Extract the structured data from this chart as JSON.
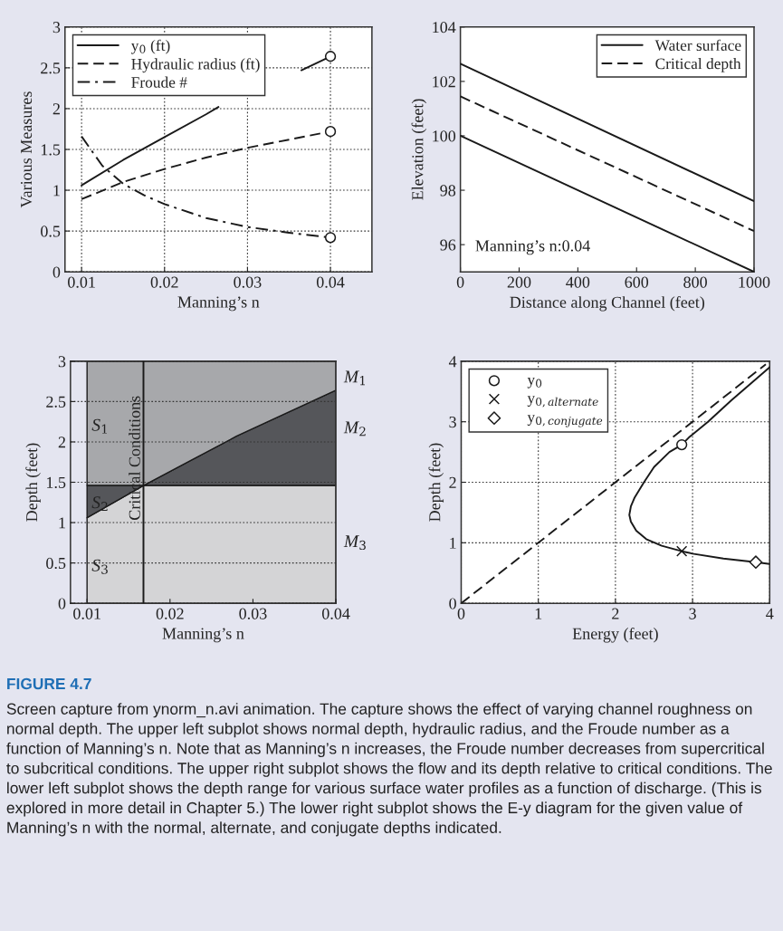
{
  "chart_data": [
    {
      "type": "line",
      "xlabel": "Manning’s n",
      "ylabel": "Various Measures",
      "xlim": [
        0.008,
        0.045
      ],
      "ylim": [
        0,
        3
      ],
      "xticks": [
        0.01,
        0.02,
        0.03,
        0.04
      ],
      "yticks": [
        0,
        0.5,
        1,
        1.5,
        2,
        2.5,
        3
      ],
      "grid": true,
      "legend": "top left",
      "series": [
        {
          "name": "y$_{0}$ (ft)",
          "color": "#1a1a1a",
          "line_style": "solid",
          "x": [
            0.01,
            0.015,
            0.02,
            0.025,
            0.0265,
            0.03,
            0.0365,
            0.04
          ],
          "values": [
            1.06,
            1.37,
            1.65,
            1.93,
            2.02,
            null,
            2.47,
            2.64
          ]
        },
        {
          "name": "Hydraulic radius (ft)",
          "color": "#1a1a1a",
          "line_style": "dashed",
          "x": [
            0.01,
            0.015,
            0.02,
            0.025,
            0.03,
            0.035,
            0.04
          ],
          "values": [
            0.89,
            1.1,
            1.26,
            1.4,
            1.52,
            1.62,
            1.72
          ]
        },
        {
          "name": "Froude #",
          "color": "#1a1a1a",
          "line_style": "dashdot",
          "x": [
            0.01,
            0.0125,
            0.015,
            0.0175,
            0.02,
            0.025,
            0.03,
            0.035,
            0.04
          ],
          "values": [
            1.66,
            1.3,
            1.08,
            0.94,
            0.83,
            0.66,
            0.55,
            0.48,
            0.42
          ]
        },
        {
          "type": "scatter",
          "marker": "circle",
          "color": "#1a1a1a",
          "x": [
            0.04,
            0.04,
            0.04
          ],
          "values": [
            2.64,
            1.72,
            0.42
          ]
        }
      ]
    },
    {
      "type": "line",
      "xlabel": "Distance along Channel (feet)",
      "ylabel": "Elevation (feet)",
      "xlim": [
        0,
        1000
      ],
      "ylim": [
        95,
        104
      ],
      "xticks": [
        0,
        200,
        400,
        600,
        800,
        1000
      ],
      "yticks": [
        96,
        98,
        100,
        102,
        104
      ],
      "legend": "top right",
      "annotations": [
        "Manning’s n:0.04"
      ],
      "series": [
        {
          "name": "Water surface",
          "color": "#1a1a1a",
          "line_style": "solid",
          "x": [
            0,
            1000
          ],
          "values": [
            102.65,
            97.6
          ]
        },
        {
          "name": "Critical depth",
          "color": "#1a1a1a",
          "line_style": "dashed",
          "x": [
            0,
            1000
          ],
          "values": [
            101.45,
            96.5
          ]
        },
        {
          "color": "#1a1a1a",
          "line_style": "solid",
          "x": [
            0,
            1000
          ],
          "values": [
            100,
            95
          ]
        }
      ]
    },
    {
      "type": "area",
      "stacked": true,
      "xlabel": "Manning’s n",
      "ylabel": "Depth (feet)",
      "xlim": [
        0.008,
        0.04
      ],
      "ylim": [
        0,
        3
      ],
      "xticks": [
        0.01,
        0.02,
        0.03,
        0.04
      ],
      "yticks": [
        0,
        0.5,
        1,
        1.5,
        2,
        2.5,
        3
      ],
      "grid": "y",
      "x": [
        0.01,
        0.0168,
        0.028,
        0.04
      ],
      "series": [
        {
          "color": "#d4d4d6",
          "values": [
            1.06,
            1.46,
            1.46,
            1.46
          ]
        },
        {
          "color": "#55565a",
          "values": [
            0.4,
            0,
            0.61,
            1.18
          ]
        },
        {
          "color": "#a7a8ab",
          "values": [
            1.54,
            1.54,
            0.93,
            0.36
          ]
        }
      ],
      "ref_lines": [
        {
          "axis": "x",
          "value": 0.0168,
          "label": "Critical Conditions"
        }
      ],
      "annotations": [
        "S$_{1}$",
        "S$_{2}$",
        "S$_{3}$",
        "M$_{1}$",
        "M$_{2}$",
        "M$_{3}$"
      ]
    },
    {
      "type": "line",
      "xlabel": "Energy (feet)",
      "ylabel": "Depth (feet)",
      "xlim": [
        0,
        4
      ],
      "ylim": [
        0,
        4
      ],
      "xticks": [
        0,
        1,
        2,
        3,
        4
      ],
      "yticks": [
        0,
        1,
        2,
        3,
        4
      ],
      "grid": true,
      "legend": "top left",
      "series": [
        {
          "color": "#1a1a1a",
          "line_style": "solid",
          "x": [
            4.0,
            3.82,
            3.4,
            3.0,
            2.86,
            2.6,
            2.51,
            2.4,
            2.27,
            2.2,
            2.18,
            2.2,
            2.25,
            2.37,
            2.5,
            2.7,
            2.86,
            2.96,
            3.2,
            3.5,
            4.0
          ],
          "values": [
            0.65,
            0.68,
            0.74,
            0.82,
            0.86,
            0.95,
            1.0,
            1.06,
            1.2,
            1.35,
            1.46,
            1.6,
            1.75,
            2.0,
            2.25,
            2.5,
            2.62,
            2.75,
            3.0,
            3.35,
            3.9
          ]
        },
        {
          "color": "#1a1a1a",
          "line_style": "dashed",
          "x": [
            0,
            3.95
          ],
          "values": [
            0,
            3.95
          ]
        },
        {
          "type": "scatter",
          "name": "y$_{0}$",
          "marker": "circle",
          "color": "#1a1a1a",
          "x": [
            2.86
          ],
          "values": [
            2.62
          ]
        },
        {
          "type": "scatter",
          "name": "y$_{0,alternate}$",
          "marker": "cross",
          "color": "#1a1a1a",
          "x": [
            2.86
          ],
          "values": [
            0.86
          ]
        },
        {
          "type": "scatter",
          "name": "y$_{0,conjugate}$",
          "marker": "diamond",
          "color": "#1a1a1a",
          "x": [
            3.82
          ],
          "values": [
            0.68
          ]
        }
      ],
      "annotations": [
        "FIGURE 4.7",
        "Screen capture from ynorm_n.avi animation. The capture shows the effect of varying channel roughness on normal depth. The upper left subplot shows normal depth, hydraulic radius, and the Froude number as a function of Manning’s n. Note that as Manning’s n increases, the Froude number decreases from supercritical to subcritical conditions. The upper right subplot shows the flow and its depth relative to critical conditions. The lower left subplot shows the depth range for various surface water profiles as a function of discharge. (This is explored in more detail in Chapter 5.) The lower right subplot shows the E-y diagram for the given value of Manning’s n with the normal, alternate, and conjugate depths indicated."
      ]
    }
  ]
}
